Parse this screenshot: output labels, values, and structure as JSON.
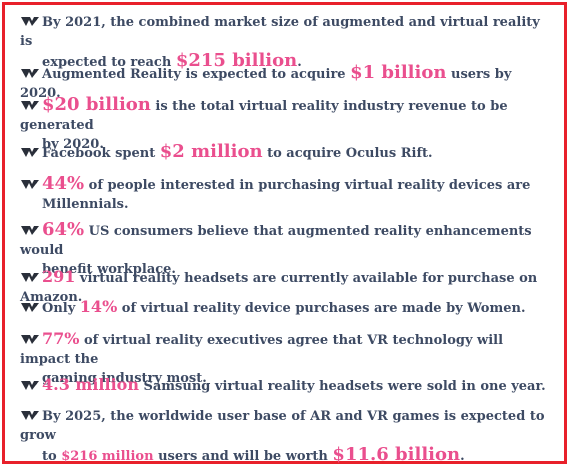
{
  "items": [
    {
      "pre": "By 2021, the combined market size of augmented and virtual reality is",
      "line2_pre": "expected to reach ",
      "hl": "$215 billion",
      "post": "."
    },
    {
      "pre": "Augmented Reality is expected to acquire ",
      "hl": "$1 billion",
      "post": " users by 2020."
    },
    {
      "pre": "",
      "hl": "$20 billion",
      "post": " is the total virtual reality industry revenue to be generated",
      "line2": "by 2020."
    },
    {
      "pre": "Facebook spent ",
      "hl": "$2 million",
      "post": " to acquire Oculus Rift."
    },
    {
      "pre": "",
      "hl": "44%",
      "post": " of people interested in purchasing virtual reality devices are",
      "line2": "Millennials."
    },
    {
      "pre": "",
      "hl": "64%",
      "post": " US consumers believe that augmented reality enhancements would",
      "line2": "benefit workplace."
    },
    {
      "pre": "",
      "hl": "291",
      "post": " virtual reality headsets are currently available for purchase on Amazon."
    },
    {
      "pre": "Only ",
      "hl": "14%",
      "post": " of virtual reality device purchases are made by Women."
    },
    {
      "pre": "",
      "hl": "77%",
      "post": " of virtual reality executives agree that VR technology will impact the",
      "line2": "gaming industry most."
    },
    {
      "pre": "",
      "hl": "4.3 million",
      "post": " Samsung virtual reality headsets were sold in one year."
    },
    {
      "pre": "By 2025, the worldwide user base of AR and VR games is expected to grow",
      "line2_pre": "to ",
      "hl2": "$216 million",
      "line2_mid": " users and will be worth ",
      "hl": "$11.6 billion",
      "post": "."
    }
  ],
  "colors": {
    "border": "#e8202a",
    "text": "#3d4a63",
    "highlight": "#ea4f8e"
  },
  "icon": "vr-headset-icon"
}
